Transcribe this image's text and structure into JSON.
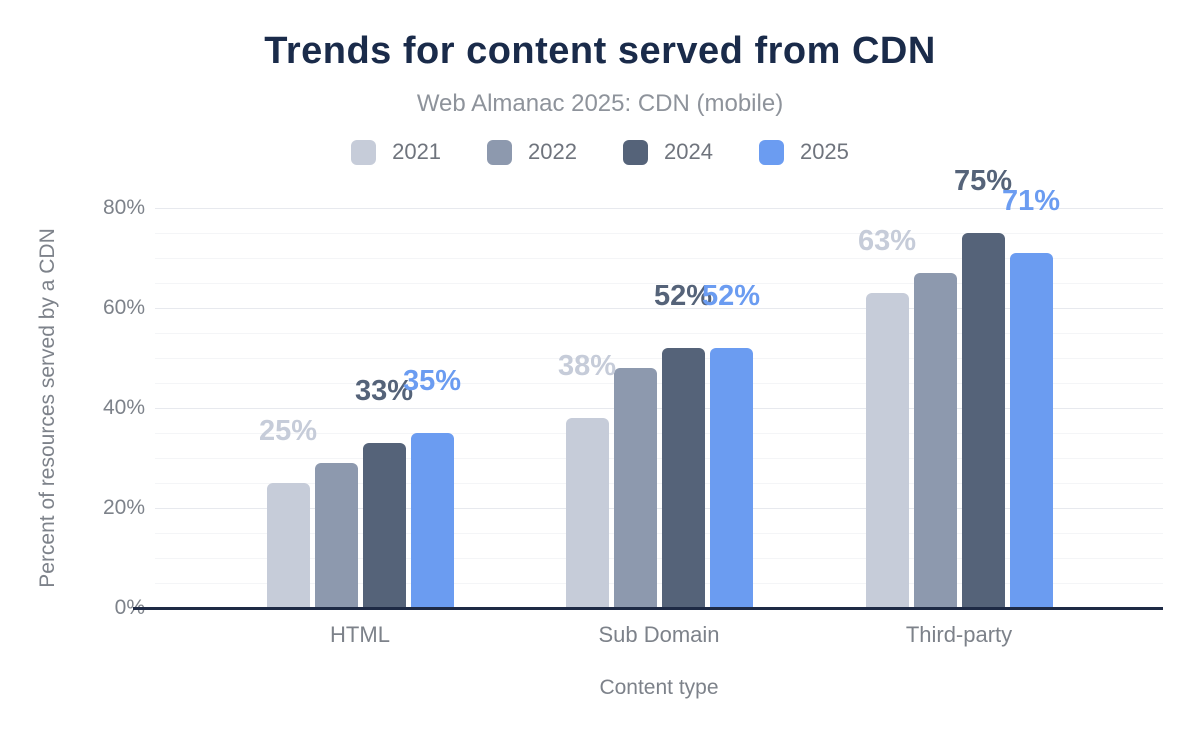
{
  "chart_data": {
    "type": "bar",
    "title": "Trends for content served from CDN",
    "subtitle": "Web Almanac 2025: CDN (mobile)",
    "xlabel": "Content type",
    "ylabel": "Percent of resources served by a CDN",
    "categories": [
      "HTML",
      "Sub Domain",
      "Third-party"
    ],
    "ylim": [
      0,
      80
    ],
    "yticks": [
      {
        "value": 0,
        "label": "0%"
      },
      {
        "value": 20,
        "label": "20%"
      },
      {
        "value": 40,
        "label": "40%"
      },
      {
        "value": 60,
        "label": "60%"
      },
      {
        "value": 80,
        "label": "80%"
      }
    ],
    "grid": {
      "minor_step": 5,
      "major_step": 20
    },
    "legend_position": "top",
    "series": [
      {
        "name": "2021",
        "color": "#c6ccd9",
        "values": [
          25,
          38,
          63
        ],
        "data_labels": [
          "25%",
          "38%",
          "63%"
        ],
        "labels_shown": [
          true,
          true,
          true
        ]
      },
      {
        "name": "2022",
        "color": "#8d99ae",
        "values": [
          29,
          48,
          67
        ],
        "data_labels": [
          "29%",
          "48%",
          "67%"
        ],
        "labels_shown": [
          false,
          false,
          false
        ]
      },
      {
        "name": "2024",
        "color": "#556379",
        "values": [
          33,
          52,
          75
        ],
        "data_labels": [
          "33%",
          "52%",
          "75%"
        ],
        "labels_shown": [
          true,
          true,
          true
        ]
      },
      {
        "name": "2025",
        "color": "#6b9cf1",
        "values": [
          35,
          52,
          71
        ],
        "data_labels": [
          "35%",
          "52%",
          "71%"
        ],
        "labels_shown": [
          true,
          true,
          true
        ]
      }
    ],
    "colors": {
      "title": "#1a2b4a",
      "subtitle": "#8e939b",
      "legend_text": "#6f747d",
      "axis_text": "#7d828a",
      "baseline": "#1e2a45",
      "grid_major": "#e7e9ee",
      "grid_minor": "#f4f5f7",
      "background": "#ffffff"
    }
  }
}
